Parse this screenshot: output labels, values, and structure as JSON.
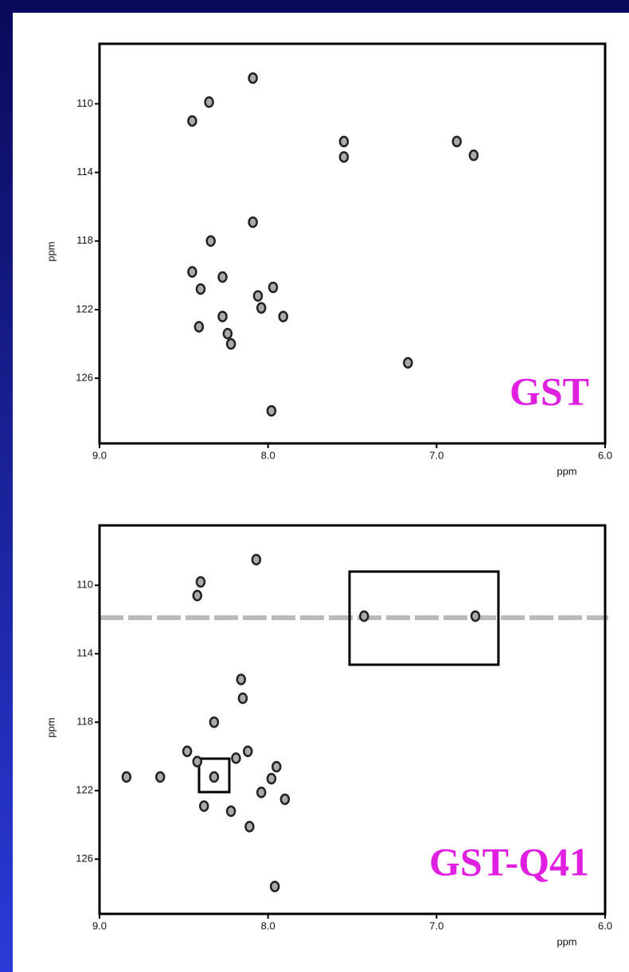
{
  "chart_data": [
    {
      "type": "scatter",
      "annotation": "GST",
      "ylabel": "ppm",
      "xlabel": "ppm",
      "color": "#222222",
      "xlim": [
        9,
        6
      ],
      "ylim": [
        129.8,
        106.5
      ],
      "xticks": [
        {
          "value": 9,
          "label": "9.0"
        },
        {
          "value": 8,
          "label": "8.0"
        },
        {
          "value": 7,
          "label": "7.0"
        },
        {
          "value": 6,
          "label": "6.0"
        }
      ],
      "yticks": [
        110,
        114,
        118,
        122,
        126
      ],
      "x": [
        8.09,
        8.35,
        8.45,
        7.55,
        7.55,
        6.88,
        6.78,
        8.09,
        8.34,
        8.45,
        8.27,
        7.97,
        8.06,
        8.4,
        8.04,
        7.91,
        8.27,
        8.41,
        8.24,
        8.22,
        7.17,
        7.98
      ],
      "y": [
        108.5,
        109.9,
        111.0,
        112.2,
        113.1,
        112.2,
        113.0,
        116.9,
        118.0,
        119.8,
        120.1,
        120.7,
        121.2,
        120.8,
        121.9,
        122.4,
        122.4,
        123.0,
        123.4,
        124.0,
        125.1,
        127.9
      ]
    },
    {
      "type": "scatter",
      "annotation": "GST-Q41",
      "ylabel": "ppm",
      "xlabel": "ppm",
      "color": "#222222",
      "xlim": [
        9,
        6
      ],
      "ylim": [
        129.2,
        106.5
      ],
      "xticks": [
        {
          "value": 9,
          "label": "9.0"
        },
        {
          "value": 8,
          "label": "8.0"
        },
        {
          "value": 7,
          "label": "7.0"
        },
        {
          "value": 6,
          "label": "6.0"
        }
      ],
      "yticks": [
        110,
        114,
        118,
        122,
        126
      ],
      "x": [
        8.07,
        8.4,
        8.42,
        7.43,
        6.77,
        8.16,
        8.15,
        8.32,
        8.48,
        8.42,
        8.19,
        8.12,
        7.95,
        8.84,
        8.64,
        8.32,
        7.98,
        8.04,
        7.9,
        8.38,
        8.22,
        8.11,
        7.96
      ],
      "y": [
        108.5,
        109.8,
        110.6,
        111.8,
        111.8,
        115.5,
        116.6,
        118.0,
        119.7,
        120.3,
        120.1,
        119.7,
        120.6,
        121.2,
        121.2,
        121.2,
        121.3,
        122.1,
        122.5,
        122.9,
        123.2,
        124.1,
        127.6
      ]
    }
  ]
}
